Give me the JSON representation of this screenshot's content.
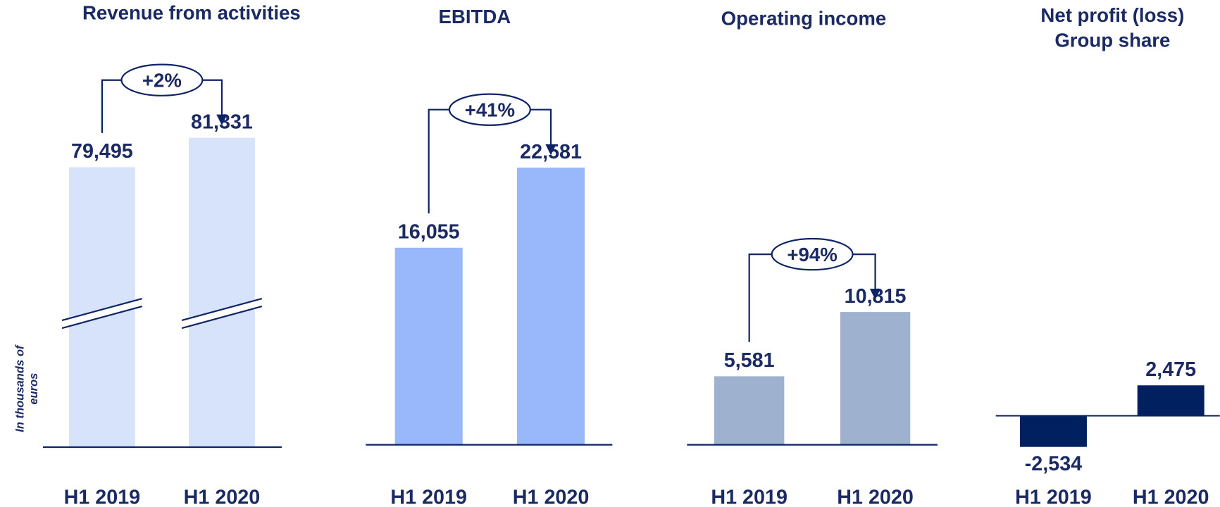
{
  "y_axis_label": [
    "In thousands of",
    "euros"
  ],
  "chart_data": [
    {
      "type": "bar",
      "title": "Revenue from activities",
      "categories": [
        "H1 2019",
        "H1 2020"
      ],
      "values": [
        79495,
        81331
      ],
      "value_labels": [
        "79,495",
        "81,331"
      ],
      "color": "#d6e3fb",
      "ylim": [
        62000,
        88000
      ],
      "axis_break": true,
      "change": "+2%"
    },
    {
      "type": "bar",
      "title": "EBITDA",
      "categories": [
        "H1 2019",
        "H1 2020"
      ],
      "values": [
        16055,
        22581
      ],
      "value_labels": [
        "16,055",
        "22,581"
      ],
      "color": "#99b8fc",
      "ylim": [
        0,
        33700
      ],
      "axis_break": false,
      "change": "+41%"
    },
    {
      "type": "bar",
      "title": "Operating income",
      "categories": [
        "H1 2019",
        "H1 2020"
      ],
      "values": [
        5581,
        10815
      ],
      "value_labels": [
        "5,581",
        "10,815"
      ],
      "color": "#9eb1cf",
      "ylim": [
        0,
        33700
      ],
      "axis_break": false,
      "change": "+94%"
    },
    {
      "type": "bar",
      "title": [
        "Net profit (loss)",
        "Group share"
      ],
      "categories": [
        "H1 2019",
        "H1 2020"
      ],
      "values": [
        -2534,
        2475
      ],
      "value_labels": [
        "-2,534",
        "2,475"
      ],
      "color": "#002060",
      "ylim": [
        -3500,
        31300
      ],
      "axis_break": false
    }
  ]
}
